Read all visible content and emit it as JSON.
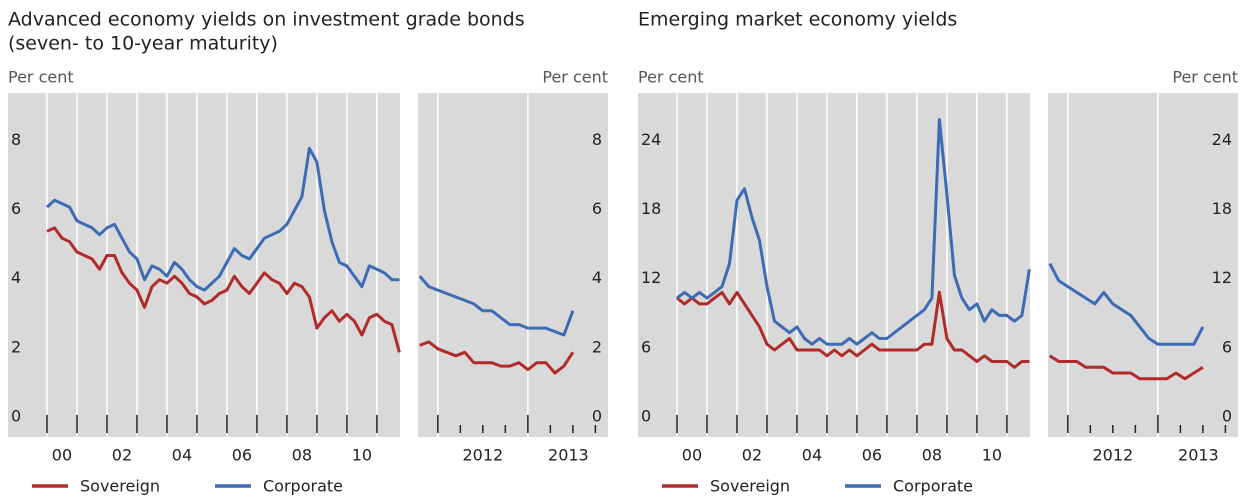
{
  "chart_data": [
    {
      "type": "line",
      "title": [
        "Advanced economy yields on investment grade bonds",
        "(seven- to 10-year maturity)"
      ],
      "ylim": [
        -0.35,
        9.6
      ],
      "yticks": [
        0,
        2,
        4,
        6,
        8
      ],
      "legend": [
        {
          "name": "Sovereign",
          "color": "#b22b2b"
        },
        {
          "name": "Corporate",
          "color": "#3d6cb5"
        }
      ],
      "panels": [
        {
          "ylabel": "Per cent",
          "xlim": [
            1998.7,
            2011.77
          ],
          "xticks": [
            {
              "value": 2000.5,
              "label": "00"
            },
            {
              "value": 2002.5,
              "label": "02"
            },
            {
              "value": 2004.5,
              "label": "04"
            },
            {
              "value": 2006.5,
              "label": "06"
            },
            {
              "value": 2008.5,
              "label": "08"
            },
            {
              "value": 2010.5,
              "label": "10"
            }
          ],
          "xminor": [
            2000,
            2001,
            2002,
            2003,
            2004,
            2005,
            2006,
            2007,
            2008,
            2009,
            2010,
            2011
          ],
          "x": [
            2000,
            2000.25,
            2000.5,
            2000.75,
            2001,
            2001.25,
            2001.5,
            2001.75,
            2002,
            2002.25,
            2002.5,
            2002.75,
            2003,
            2003.25,
            2003.5,
            2003.75,
            2004,
            2004.25,
            2004.5,
            2004.75,
            2005,
            2005.25,
            2005.5,
            2005.75,
            2006,
            2006.25,
            2006.5,
            2006.75,
            2007,
            2007.25,
            2007.5,
            2007.75,
            2008,
            2008.25,
            2008.5,
            2008.75,
            2009,
            2009.25,
            2009.5,
            2009.75,
            2010,
            2010.25,
            2010.5,
            2010.75,
            2011,
            2011.25,
            2011.5,
            2011.75
          ],
          "series": [
            {
              "values": [
                5.6,
                5.7,
                5.4,
                5.3,
                5.0,
                4.9,
                4.8,
                4.5,
                4.9,
                4.9,
                4.4,
                4.1,
                3.9,
                3.4,
                4.0,
                4.2,
                4.1,
                4.3,
                4.1,
                3.8,
                3.7,
                3.5,
                3.6,
                3.8,
                3.9,
                4.3,
                4.0,
                3.8,
                4.1,
                4.4,
                4.2,
                4.1,
                3.8,
                4.1,
                4.0,
                3.7,
                2.8,
                3.1,
                3.3,
                3.0,
                3.2,
                3.0,
                2.6,
                3.1,
                3.2,
                3.0,
                2.9,
                2.1
              ]
            },
            {
              "values": [
                6.3,
                6.5,
                6.4,
                6.3,
                5.9,
                5.8,
                5.7,
                5.5,
                5.7,
                5.8,
                5.4,
                5.0,
                4.8,
                4.2,
                4.6,
                4.5,
                4.3,
                4.7,
                4.5,
                4.2,
                4.0,
                3.9,
                4.1,
                4.3,
                4.7,
                5.1,
                4.9,
                4.8,
                5.1,
                5.4,
                5.5,
                5.6,
                5.8,
                6.2,
                6.6,
                8.0,
                7.6,
                6.2,
                5.3,
                4.7,
                4.6,
                4.3,
                4.0,
                4.6,
                4.5,
                4.4,
                4.2,
                4.2
              ]
            }
          ]
        },
        {
          "ylabel": "Per cent",
          "xlim": [
            2011.78,
            2013.89
          ],
          "xticks": [
            {
              "value": 2012.5,
              "label": "2012"
            },
            {
              "value": 2013.45,
              "label": "2013"
            }
          ],
          "xminor": [
            2012,
            2012.25,
            2012.5,
            2012.75,
            2013,
            2013.25,
            2013.5,
            2013.75
          ],
          "x": [
            2011.8,
            2011.9,
            2012.0,
            2012.1,
            2012.2,
            2012.3,
            2012.4,
            2012.5,
            2012.6,
            2012.7,
            2012.8,
            2012.9,
            2013.0,
            2013.1,
            2013.2,
            2013.3,
            2013.4,
            2013.5
          ],
          "series": [
            {
              "values": [
                2.3,
                2.4,
                2.2,
                2.1,
                2.0,
                2.1,
                1.8,
                1.8,
                1.8,
                1.7,
                1.7,
                1.8,
                1.6,
                1.8,
                1.8,
                1.5,
                1.7,
                2.1
              ]
            },
            {
              "values": [
                4.3,
                4.0,
                3.9,
                3.8,
                3.7,
                3.6,
                3.5,
                3.3,
                3.3,
                3.1,
                2.9,
                2.9,
                2.8,
                2.8,
                2.8,
                2.7,
                2.6,
                3.3
              ]
            }
          ]
        }
      ]
    },
    {
      "type": "line",
      "title": [
        "Emerging market economy yields"
      ],
      "ylim": [
        -1.05,
        28.8
      ],
      "yticks": [
        0,
        6,
        12,
        18,
        24
      ],
      "legend": [
        {
          "name": "Sovereign",
          "color": "#b22b2b"
        },
        {
          "name": "Corporate",
          "color": "#3d6cb5"
        }
      ],
      "panels": [
        {
          "ylabel": "Per cent",
          "xlim": [
            1998.7,
            2011.77
          ],
          "xticks": [
            {
              "value": 2000.5,
              "label": "00"
            },
            {
              "value": 2002.5,
              "label": "02"
            },
            {
              "value": 2004.5,
              "label": "04"
            },
            {
              "value": 2006.5,
              "label": "06"
            },
            {
              "value": 2008.5,
              "label": "08"
            },
            {
              "value": 2010.5,
              "label": "10"
            }
          ],
          "xminor": [
            2000,
            2001,
            2002,
            2003,
            2004,
            2005,
            2006,
            2007,
            2008,
            2009,
            2010,
            2011
          ],
          "x": [
            2000,
            2000.25,
            2000.5,
            2000.75,
            2001,
            2001.25,
            2001.5,
            2001.75,
            2002,
            2002.25,
            2002.5,
            2002.75,
            2003,
            2003.25,
            2003.5,
            2003.75,
            2004,
            2004.25,
            2004.5,
            2004.75,
            2005,
            2005.25,
            2005.5,
            2005.75,
            2006,
            2006.25,
            2006.5,
            2006.75,
            2007,
            2007.25,
            2007.5,
            2007.75,
            2008,
            2008.25,
            2008.5,
            2008.75,
            2009,
            2009.25,
            2009.5,
            2009.75,
            2010,
            2010.25,
            2010.5,
            2010.75,
            2011,
            2011.25,
            2011.5,
            2011.75
          ],
          "series": [
            {
              "values": [
                11.0,
                10.5,
                11.0,
                10.5,
                10.5,
                11.0,
                11.5,
                10.5,
                11.5,
                10.5,
                9.5,
                8.5,
                7.0,
                6.5,
                7.0,
                7.5,
                6.5,
                6.5,
                6.5,
                6.5,
                6.0,
                6.5,
                6.0,
                6.5,
                6.0,
                6.5,
                7.0,
                6.5,
                6.5,
                6.5,
                6.5,
                6.5,
                6.5,
                7.0,
                7.0,
                11.5,
                7.5,
                6.5,
                6.5,
                6.0,
                5.5,
                6.0,
                5.5,
                5.5,
                5.5,
                5.0,
                5.5,
                5.5
              ]
            },
            {
              "values": [
                11.0,
                11.5,
                11.0,
                11.5,
                11.0,
                11.5,
                12.0,
                14.0,
                19.5,
                20.5,
                18.0,
                16.0,
                12.0,
                9.0,
                8.5,
                8.0,
                8.5,
                7.5,
                7.0,
                7.5,
                7.0,
                7.0,
                7.0,
                7.5,
                7.0,
                7.5,
                8.0,
                7.5,
                7.5,
                8.0,
                8.5,
                9.0,
                9.5,
                10.0,
                11.0,
                26.5,
                20.0,
                13.0,
                11.0,
                10.0,
                10.5,
                9.0,
                10.0,
                9.5,
                9.5,
                9.0,
                9.5,
                13.5
              ]
            }
          ]
        },
        {
          "ylabel": "Per cent",
          "xlim": [
            2011.78,
            2013.89
          ],
          "xticks": [
            {
              "value": 2012.5,
              "label": "2012"
            },
            {
              "value": 2013.45,
              "label": "2013"
            }
          ],
          "xminor": [
            2012,
            2012.25,
            2012.5,
            2012.75,
            2013,
            2013.25,
            2013.5,
            2013.75
          ],
          "x": [
            2011.8,
            2011.9,
            2012.0,
            2012.1,
            2012.2,
            2012.3,
            2012.4,
            2012.5,
            2012.6,
            2012.7,
            2012.8,
            2012.9,
            2013.0,
            2013.1,
            2013.2,
            2013.3,
            2013.4,
            2013.5
          ],
          "series": [
            {
              "values": [
                6.0,
                5.5,
                5.5,
                5.5,
                5.0,
                5.0,
                5.0,
                4.5,
                4.5,
                4.5,
                4.0,
                4.0,
                4.0,
                4.0,
                4.5,
                4.0,
                4.5,
                5.0
              ]
            },
            {
              "values": [
                14.0,
                12.5,
                12.0,
                11.5,
                11.0,
                10.5,
                11.5,
                10.5,
                10.0,
                9.5,
                8.5,
                7.5,
                7.0,
                7.0,
                7.0,
                7.0,
                7.0,
                8.5
              ]
            }
          ]
        }
      ]
    }
  ]
}
